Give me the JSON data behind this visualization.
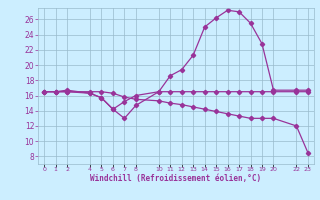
{
  "title": "",
  "xlabel": "Windchill (Refroidissement éolien,°C)",
  "bg_color": "#cceeff",
  "line_color": "#993399",
  "grid_color": "#99bbcc",
  "xlim": [
    -0.5,
    23.5
  ],
  "ylim": [
    7.0,
    27.5
  ],
  "yticks": [
    8,
    10,
    12,
    14,
    16,
    18,
    20,
    22,
    24,
    26
  ],
  "xtick_positions": [
    0,
    1,
    2,
    4,
    5,
    6,
    7,
    8,
    10,
    11,
    12,
    13,
    14,
    15,
    16,
    17,
    18,
    19,
    20,
    22,
    23
  ],
  "xtick_labels": [
    "0",
    "1",
    "2",
    "4",
    "5",
    "6",
    "7",
    "8",
    "10",
    "11",
    "12",
    "13",
    "14",
    "15",
    "16",
    "17",
    "18",
    "19",
    "20",
    "22",
    "23"
  ],
  "line1_x": [
    0,
    1,
    2,
    4,
    5,
    6,
    7,
    8,
    10,
    11,
    12,
    13,
    14,
    15,
    16,
    17,
    18,
    19,
    20,
    22,
    23
  ],
  "line1_y": [
    16.5,
    16.5,
    16.7,
    16.3,
    15.7,
    14.2,
    13.0,
    14.7,
    16.5,
    18.6,
    19.4,
    21.3,
    25.0,
    26.2,
    27.2,
    27.0,
    25.5,
    22.8,
    16.7,
    16.7,
    16.7
  ],
  "line2_x": [
    0,
    1,
    2,
    4,
    5,
    6,
    7,
    8,
    10,
    11,
    12,
    13,
    14,
    15,
    16,
    17,
    18,
    19,
    20,
    22,
    23
  ],
  "line2_y": [
    16.5,
    16.5,
    16.5,
    16.5,
    16.5,
    16.3,
    15.8,
    15.5,
    15.3,
    15.0,
    14.8,
    14.5,
    14.2,
    13.9,
    13.6,
    13.3,
    13.0,
    13.0,
    13.0,
    12.0,
    8.5
  ],
  "line3_x": [
    0,
    1,
    2,
    4,
    5,
    6,
    7,
    8,
    10,
    11,
    12,
    13,
    14,
    15,
    16,
    17,
    18,
    19,
    20,
    22,
    23
  ],
  "line3_y": [
    16.5,
    16.5,
    16.5,
    16.3,
    15.7,
    14.2,
    15.2,
    16.0,
    16.5,
    16.5,
    16.5,
    16.5,
    16.5,
    16.5,
    16.5,
    16.5,
    16.5,
    16.5,
    16.5,
    16.5,
    16.5
  ]
}
